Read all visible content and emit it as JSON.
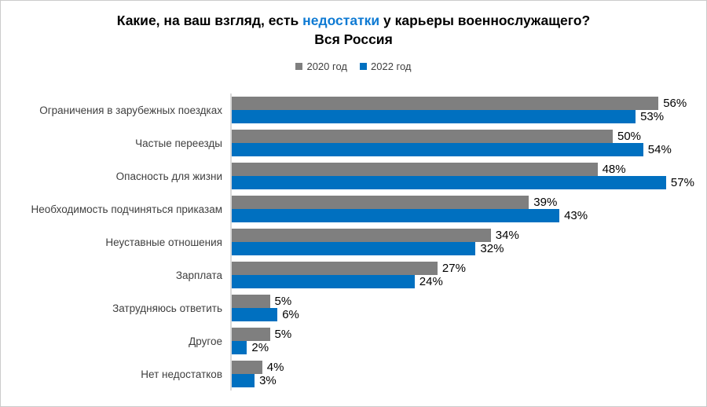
{
  "frame": {
    "background": "#FFFFFF",
    "border_color": "#CBCBCB"
  },
  "title": {
    "line1_before": "Какие, на ваш взгляд, есть ",
    "line1_accent": "недостатки",
    "line1_after": " у карьеры военнослужащего?",
    "line2": "Вся Россия",
    "accent_color": "#0E7AD3"
  },
  "legend": {
    "items": [
      {
        "label": "2020 год",
        "color": "#7F7F7F"
      },
      {
        "label": "2022 год",
        "color": "#0070C0"
      }
    ]
  },
  "colors": {
    "bar_2020": "#7F7F7F",
    "bar_2022": "#0070C0",
    "axis_line": "#D9D9D9",
    "value_label": "#000000",
    "category_label": "#3F3F3F"
  },
  "chart_data": {
    "type": "bar",
    "orientation": "horizontal",
    "title": "Какие, на ваш взгляд, есть недостатки у карьеры военнослужащего?",
    "subtitle": "Вся Россия",
    "categories": [
      "Ограничения в зарубежных поездках",
      "Частые переезды",
      "Опасность для жизни",
      "Необходимость подчиняться приказам",
      "Неуставные отношения",
      "Зарплата",
      "Затрудняюсь ответить",
      "Другое",
      "Нет недостатков"
    ],
    "series": [
      {
        "name": "2020 год",
        "color": "#7F7F7F",
        "values": [
          56,
          50,
          48,
          39,
          34,
          27,
          5,
          5,
          4
        ]
      },
      {
        "name": "2022 год",
        "color": "#0070C0",
        "values": [
          53,
          54,
          57,
          43,
          32,
          24,
          6,
          2,
          3
        ]
      }
    ],
    "value_suffix": "%",
    "xlim": [
      0,
      60
    ],
    "grid": false,
    "legend_position": "top",
    "data_labels": true
  }
}
